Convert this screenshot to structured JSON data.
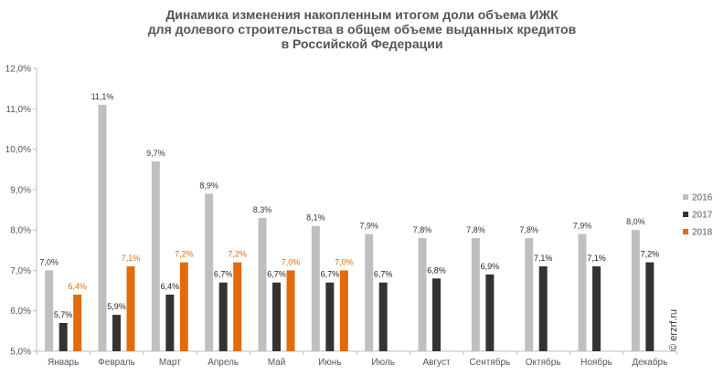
{
  "chart_data": {
    "type": "bar",
    "title_lines": [
      "Динамика изменения накопленным итогом доли объема ИЖК",
      "для долевого строительства  в общем объеме выданных кредитов",
      "в Российской  Федерации"
    ],
    "categories": [
      "Январь",
      "Февраль",
      "Март",
      "Апрель",
      "Май",
      "Июнь",
      "Июль",
      "Август",
      "Сентябрь",
      "Октябрь",
      "Ноябрь",
      "Декабрь"
    ],
    "series": [
      {
        "name": "2016",
        "color": "#bfbfbf",
        "label_color": "#333333",
        "values": [
          7.0,
          11.1,
          9.7,
          8.9,
          8.3,
          8.1,
          7.9,
          7.8,
          7.8,
          7.8,
          7.9,
          8.0
        ],
        "labels": [
          "7,0%",
          "11,1%",
          "9,7%",
          "8,9%",
          "8,3%",
          "8,1%",
          "7,9%",
          "7,8%",
          "7,8%",
          "7,8%",
          "7,9%",
          "8,0%"
        ]
      },
      {
        "name": "2017",
        "color": "#333333",
        "label_color": "#222222",
        "values": [
          5.7,
          5.9,
          6.4,
          6.7,
          6.7,
          6.7,
          6.7,
          6.8,
          6.9,
          7.1,
          7.1,
          7.2
        ],
        "labels": [
          "5,7%",
          "5,9%",
          "6,4%",
          "6,7%",
          "6,7%",
          "6,7%",
          "6,7%",
          "6,8%",
          "6,9%",
          "7,1%",
          "7,1%",
          "7,2%"
        ]
      },
      {
        "name": "2018",
        "color": "#e36c0a",
        "label_color": "#e36c0a",
        "values": [
          6.4,
          7.1,
          7.2,
          7.2,
          7.0,
          7.0,
          null,
          null,
          null,
          null,
          null,
          null
        ],
        "labels": [
          "6,4%",
          "7,1%",
          "7,2%",
          "7,2%",
          "7,0%",
          "7,0%",
          null,
          null,
          null,
          null,
          null,
          null
        ]
      }
    ],
    "ylim": [
      5.0,
      12.0
    ],
    "yticks": [
      5.0,
      6.0,
      7.0,
      8.0,
      9.0,
      10.0,
      11.0,
      12.0
    ],
    "ytick_labels": [
      "5,0%",
      "6,0%",
      "7,0%",
      "8,0%",
      "9,0%",
      "10,0%",
      "11,0%",
      "12,0%"
    ],
    "grid": false,
    "legend_position": "right",
    "xlabel": "",
    "ylabel": ""
  },
  "watermark": "© erzrf.ru"
}
